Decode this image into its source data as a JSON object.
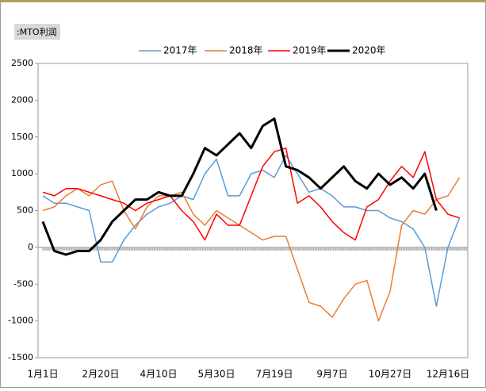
{
  "chart_data": {
    "type": "line",
    "title": ":MTO利润",
    "categories": [
      "1月1日",
      null,
      null,
      null,
      null,
      "2月20日",
      null,
      null,
      null,
      null,
      "4月10日",
      null,
      null,
      null,
      null,
      "5月30日",
      null,
      null,
      null,
      null,
      "7月19日",
      null,
      null,
      null,
      null,
      "9月7日",
      null,
      null,
      null,
      null,
      "10月27日",
      null,
      null,
      null,
      null,
      "12月16日",
      null
    ],
    "series": [
      {
        "name": "2017年",
        "color": "#5b9bd5",
        "width": 1.5,
        "values": [
          700,
          600,
          600,
          550,
          500,
          -200,
          -200,
          100,
          300,
          450,
          550,
          600,
          700,
          650,
          1000,
          1200,
          700,
          700,
          1000,
          1050,
          950,
          1250,
          1000,
          750,
          800,
          700,
          550,
          550,
          500,
          500,
          400,
          350,
          250,
          0,
          -800,
          0,
          400
        ]
      },
      {
        "name": "2018年",
        "color": "#ed7d31",
        "width": 1.5,
        "values": [
          500,
          550,
          700,
          800,
          700,
          850,
          900,
          500,
          250,
          550,
          700,
          700,
          750,
          450,
          300,
          500,
          400,
          300,
          200,
          100,
          150,
          150,
          -300,
          -750,
          -800,
          -950,
          -700,
          -500,
          -450,
          -1000,
          -600,
          300,
          500,
          450,
          650,
          700,
          950
        ]
      },
      {
        "name": "2019年",
        "color": "#ff0000",
        "width": 1.5,
        "values": [
          750,
          700,
          800,
          800,
          750,
          700,
          650,
          600,
          500,
          600,
          650,
          700,
          500,
          350,
          100,
          450,
          300,
          300,
          700,
          1100,
          1300,
          1350,
          600,
          700,
          550,
          350,
          200,
          100,
          550,
          650,
          900,
          1100,
          950,
          1300,
          650,
          450,
          400
        ]
      },
      {
        "name": "2020年",
        "color": "#000000",
        "width": 3,
        "values": [
          350,
          -50,
          -100,
          -50,
          -50,
          100,
          350,
          500,
          650,
          650,
          750,
          700,
          700,
          1000,
          1350,
          1250,
          1400,
          1550,
          1350,
          1650,
          1750,
          1100,
          1050,
          950,
          800,
          950,
          1100,
          900,
          800,
          1000,
          850,
          950,
          800,
          1000,
          500,
          null,
          null
        ]
      }
    ],
    "ylim": [
      -1500,
      2500
    ],
    "yticks": [
      -1500,
      -1000,
      -500,
      0,
      500,
      1000,
      1500,
      2000,
      2500
    ],
    "grid": false
  }
}
